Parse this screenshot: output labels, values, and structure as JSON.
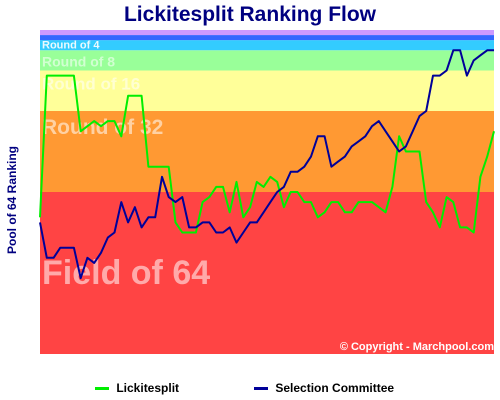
{
  "chart_data": {
    "type": "line",
    "title": "Lickitesplit Ranking Flow",
    "xlabel": "",
    "ylabel": "Pool of 64 Ranking",
    "ylim": [
      0,
      64
    ],
    "grid": false,
    "copyright": "© Copyright - Marchpool.com",
    "bands": [
      {
        "name": "Field of 64",
        "from": 0,
        "to": 32,
        "color": "#ff4444"
      },
      {
        "name": "Round of 32",
        "from": 32,
        "to": 48,
        "color": "#ff9933"
      },
      {
        "name": "Round of 16",
        "from": 48,
        "to": 56,
        "color": "#ffff99"
      },
      {
        "name": "Round of 8",
        "from": 56,
        "to": 60,
        "color": "#99ff99"
      },
      {
        "name": "Round of 4",
        "from": 60,
        "to": 62,
        "color": "#33ccff"
      },
      {
        "name": "",
        "from": 62,
        "to": 63,
        "color": "#3366ff"
      },
      {
        "name": "",
        "from": 63,
        "to": 64,
        "color": "#cc99ff"
      }
    ],
    "x": [
      1,
      2,
      3,
      4,
      5,
      6,
      7,
      8,
      9,
      10,
      11,
      12,
      13,
      14,
      15,
      16,
      17,
      18,
      19,
      20,
      21,
      22,
      23,
      24,
      25,
      26,
      27,
      28,
      29,
      30,
      31,
      32,
      33,
      34,
      35,
      36,
      37,
      38,
      39,
      40,
      41,
      42,
      43,
      44,
      45,
      46,
      47,
      48,
      49,
      50,
      51,
      52,
      53,
      54,
      55,
      56,
      57,
      58,
      59,
      60,
      61,
      62,
      63,
      64,
      65,
      66,
      67,
      68
    ],
    "series": [
      {
        "name": "Lickitesplit",
        "color": "#00ee00",
        "values": [
          27,
          55,
          55,
          55,
          55,
          55,
          44,
          45,
          46,
          45,
          46,
          46,
          43,
          51,
          51,
          51,
          37,
          37,
          37,
          37,
          26,
          24,
          24,
          24,
          30,
          31,
          33,
          33,
          28,
          34,
          27,
          29,
          34,
          33,
          35,
          34,
          29,
          32,
          32,
          30,
          30,
          27,
          28,
          30,
          30,
          28,
          28,
          30,
          30,
          30,
          29,
          28,
          33,
          43,
          40,
          40,
          40,
          30,
          28,
          25,
          31,
          30,
          25,
          25,
          24,
          35,
          39,
          44
        ]
      },
      {
        "name": "Selection Committee",
        "color": "#000099",
        "values": [
          26,
          19,
          19,
          21,
          21,
          21,
          15,
          19,
          18,
          20,
          23,
          24,
          30,
          26,
          29,
          25,
          27,
          27,
          35,
          31,
          30,
          31,
          25,
          25,
          26,
          26,
          24,
          24,
          25,
          22,
          24,
          26,
          26,
          28,
          30,
          32,
          33,
          36,
          36,
          37,
          39,
          43,
          43,
          37,
          38,
          39,
          41,
          42,
          43,
          45,
          46,
          44,
          42,
          40,
          41,
          44,
          47,
          48,
          55,
          55,
          56,
          60,
          60,
          55,
          58,
          59,
          60,
          60
        ]
      }
    ]
  }
}
